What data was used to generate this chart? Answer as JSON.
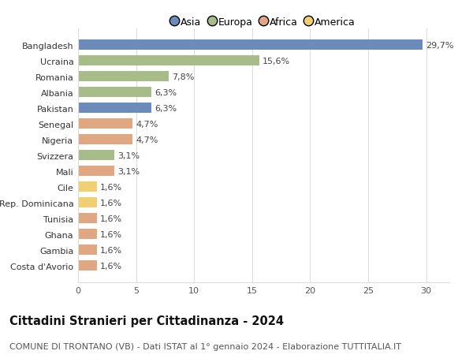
{
  "countries": [
    "Bangladesh",
    "Ucraina",
    "Romania",
    "Albania",
    "Pakistan",
    "Senegal",
    "Nigeria",
    "Svizzera",
    "Mali",
    "Cile",
    "Rep. Dominicana",
    "Tunisia",
    "Ghana",
    "Gambia",
    "Costa d'Avorio"
  ],
  "values": [
    29.7,
    15.6,
    7.8,
    6.3,
    6.3,
    4.7,
    4.7,
    3.1,
    3.1,
    1.6,
    1.6,
    1.6,
    1.6,
    1.6,
    1.6
  ],
  "labels": [
    "29,7%",
    "15,6%",
    "7,8%",
    "6,3%",
    "6,3%",
    "4,7%",
    "4,7%",
    "3,1%",
    "3,1%",
    "1,6%",
    "1,6%",
    "1,6%",
    "1,6%",
    "1,6%",
    "1,6%"
  ],
  "continents": [
    "Asia",
    "Europa",
    "Europa",
    "Europa",
    "Asia",
    "Africa",
    "Africa",
    "Europa",
    "Africa",
    "America",
    "America",
    "Africa",
    "Africa",
    "Africa",
    "Africa"
  ],
  "colors": {
    "Asia": "#6b8cba",
    "Europa": "#a8bc8a",
    "Africa": "#e0a882",
    "America": "#f0d070"
  },
  "legend_labels": [
    "Asia",
    "Europa",
    "Africa",
    "America"
  ],
  "legend_colors": [
    "#6b8cba",
    "#a8bc8a",
    "#e0a882",
    "#f0d070"
  ],
  "title": "Cittadini Stranieri per Cittadinanza - 2024",
  "subtitle": "COMUNE DI TRONTANO (VB) - Dati ISTAT al 1° gennaio 2024 - Elaborazione TUTTITALIA.IT",
  "xlim": [
    0,
    32
  ],
  "xticks": [
    0,
    5,
    10,
    15,
    20,
    25,
    30
  ],
  "background_color": "#ffffff",
  "grid_color": "#dddddd",
  "bar_height": 0.65,
  "title_fontsize": 10.5,
  "subtitle_fontsize": 8,
  "label_fontsize": 8,
  "tick_fontsize": 8,
  "legend_fontsize": 9
}
